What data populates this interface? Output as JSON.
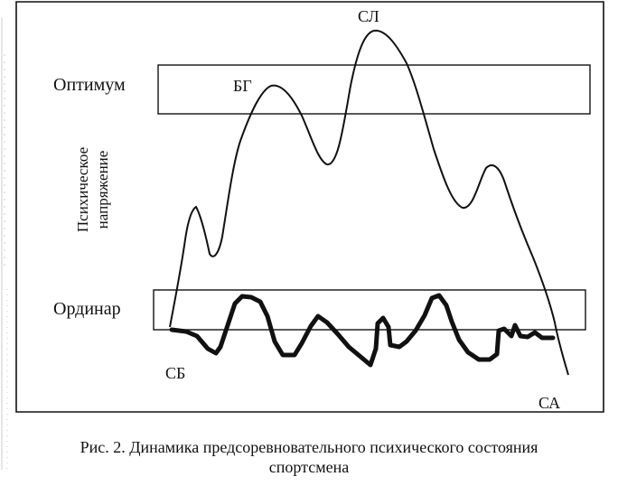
{
  "labels": {
    "optimum": "Оптимум",
    "ordinar": "Ординар",
    "y_axis_line1": "Психическое",
    "y_axis_line2": "напряжение",
    "peak_sl": "СЛ",
    "peak_bg": "БГ",
    "point_sb": "СБ",
    "point_sa": "СА"
  },
  "caption": {
    "line1": "Рис. 2. Динамика предсоревновательного психического состояния",
    "line2": "спортсмена"
  },
  "colors": {
    "ink": "#111111",
    "background": "#ffffff"
  }
}
